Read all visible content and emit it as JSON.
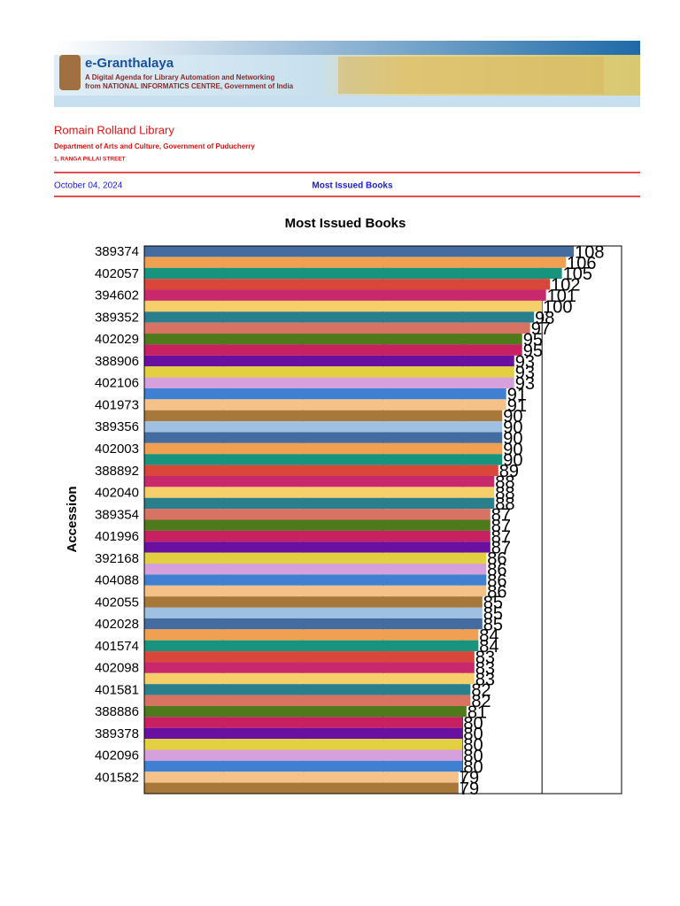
{
  "header": {
    "brand": "e-Granthalaya",
    "tagline1": "A Digital Agenda for Library Automation and Networking",
    "tagline2": "from NATIONAL INFORMATICS CENTRE, Government of India"
  },
  "library": {
    "name": "Romain Rolland Library",
    "department": "Department of Arts and Culture, Government of Puducherry",
    "address": "1, RANGA PILLAI STREET"
  },
  "report": {
    "date": "October 04, 2024",
    "title": "Most Issued Books"
  },
  "chart_data": {
    "type": "barh",
    "title": "Most Issued Books",
    "y_label": "Accession",
    "categories": [
      "389374",
      null,
      "402057",
      null,
      "394602",
      null,
      "389352",
      null,
      "402029",
      null,
      "388906",
      null,
      "402106",
      null,
      "401973",
      null,
      "389356",
      null,
      "402003",
      null,
      "388892",
      null,
      "402040",
      null,
      "389354",
      null,
      "401996",
      null,
      "392168",
      null,
      "404088",
      null,
      "402055",
      null,
      "402028",
      null,
      "401574",
      null,
      "402098",
      null,
      "401581",
      null,
      "388886",
      null,
      "389378",
      null,
      "402096",
      null,
      "401582",
      null
    ],
    "values": [
      108,
      106,
      105,
      102,
      101,
      100,
      98,
      97,
      95,
      95,
      93,
      93,
      93,
      91,
      91,
      90,
      90,
      90,
      90,
      90,
      89,
      88,
      88,
      88,
      87,
      87,
      87,
      87,
      86,
      86,
      86,
      86,
      85,
      85,
      85,
      84,
      84,
      83,
      83,
      83,
      82,
      82,
      81,
      80,
      80,
      80,
      80,
      80,
      79,
      79
    ],
    "colors": [
      "#456ca0",
      "#f0a050",
      "#17937e",
      "#d9473a",
      "#c8286c",
      "#f6cf6a",
      "#2a7f8c",
      "#d87262",
      "#4e7a1c",
      "#c82060",
      "#6a10a0",
      "#e2d040",
      "#d6a0dc",
      "#3f80d2",
      "#f4c288",
      "#a8783a",
      "#a0c0e2"
    ],
    "xlim": [
      0,
      120
    ],
    "xticks": [
      20,
      40,
      60,
      80,
      100
    ],
    "grid": true
  }
}
